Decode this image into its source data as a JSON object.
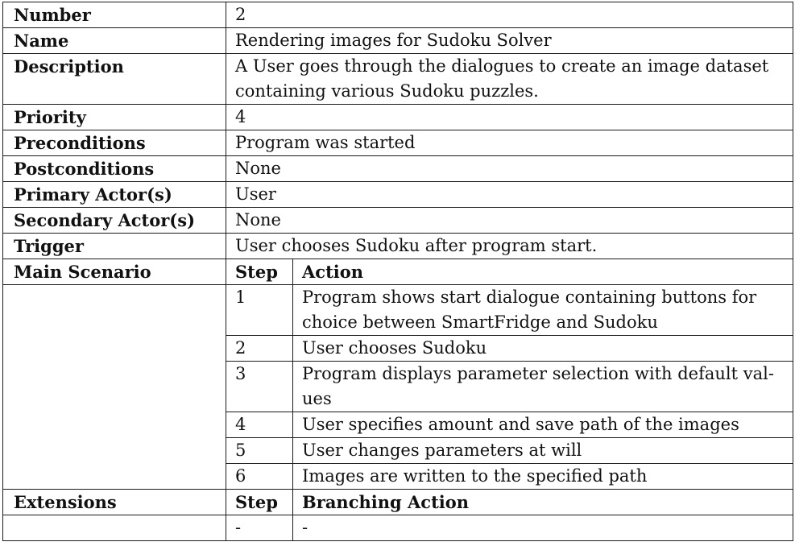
{
  "use_case": {
    "rows": {
      "number": {
        "label": "Number",
        "value": "2"
      },
      "name": {
        "label": "Name",
        "value": "Rendering images for Sudoku Solver"
      },
      "description": {
        "label": "Description",
        "value": "A User goes through the dialogues to create an image dataset containing various Sudoku puzzles."
      },
      "priority": {
        "label": "Priority",
        "value": "4"
      },
      "preconditions": {
        "label": "Preconditions",
        "value": "Program was started"
      },
      "postconditions": {
        "label": "Postconditions",
        "value": "None"
      },
      "primary_actor": {
        "label": "Primary Actor(s)",
        "value": "User"
      },
      "secondary_actor": {
        "label": "Secondary Actor(s)",
        "value": "None"
      },
      "trigger": {
        "label": "Trigger",
        "value": "User chooses Sudoku after program start."
      }
    },
    "main_scenario": {
      "label": "Main Scenario",
      "step_header": "Step",
      "action_header": "Action",
      "steps": [
        {
          "step": "1",
          "action": "Program shows start dialogue containing buttons for choice between SmartFridge and Sudoku"
        },
        {
          "step": "2",
          "action": "User chooses Sudoku"
        },
        {
          "step": "3",
          "action": "Program displays parameter selection with default val-ues"
        },
        {
          "step": "4",
          "action": "User specifies amount and save path of the images"
        },
        {
          "step": "5",
          "action": "User changes parameters at will"
        },
        {
          "step": "6",
          "action": "Images are written to the specified path"
        }
      ]
    },
    "extensions": {
      "label": "Extensions",
      "step_header": "Step",
      "action_header": "Branching Action",
      "steps": [
        {
          "step": "-",
          "action": "-"
        }
      ]
    }
  }
}
